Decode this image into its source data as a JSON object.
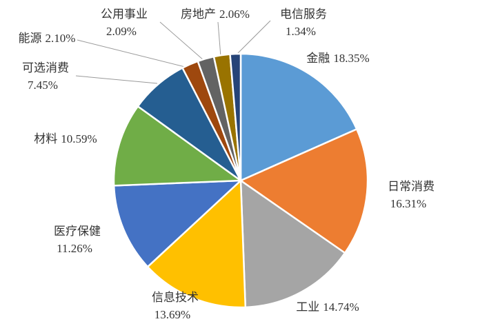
{
  "chart_data": {
    "type": "pie",
    "categories": [
      "金融",
      "日常消费",
      "工业",
      "信息技术",
      "医疗保健",
      "材料",
      "可选消费",
      "能源",
      "公用事业",
      "房地产",
      "电信服务"
    ],
    "values": [
      18.35,
      16.31,
      14.74,
      13.69,
      11.26,
      10.59,
      7.45,
      2.1,
      2.09,
      2.06,
      1.34
    ],
    "value_labels": [
      "18.35%",
      "16.31%",
      "14.74%",
      "13.69%",
      "11.26%",
      "10.59%",
      "7.45%",
      "2.10%",
      "2.09%",
      "2.06%",
      "1.34%"
    ],
    "colors": [
      "#5b9bd5",
      "#ed7d31",
      "#a5a5a5",
      "#ffc000",
      "#4472c4",
      "#70ad47",
      "#255e91",
      "#9e480e",
      "#636363",
      "#997300",
      "#264478"
    ]
  }
}
